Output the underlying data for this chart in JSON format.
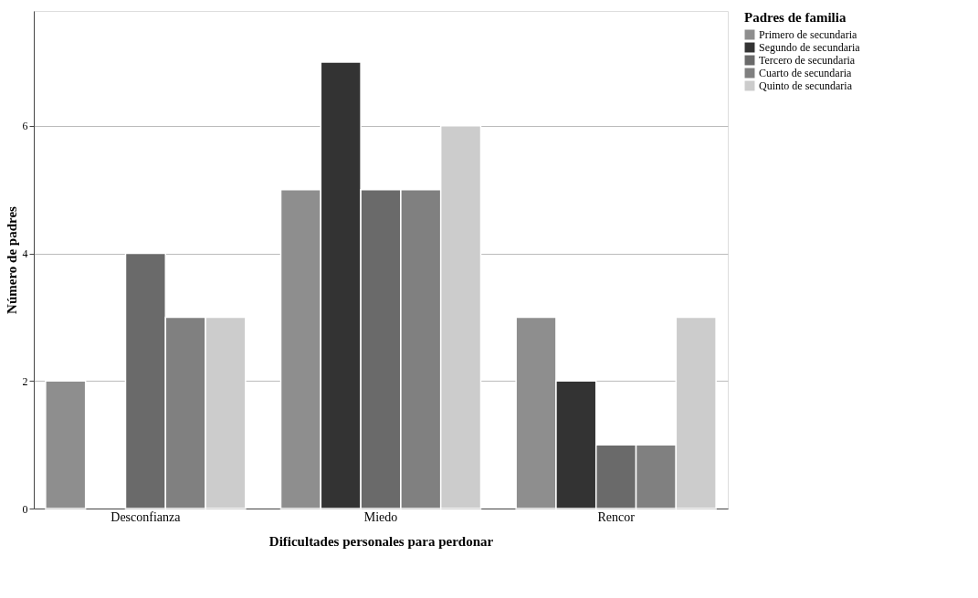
{
  "chart_data": {
    "type": "bar",
    "xlabel": "Dificultades personales para perdonar",
    "ylabel": "Número de padres",
    "legend_title": "Padres de familia",
    "categories": [
      "Desconfianza",
      "Miedo",
      "Rencor"
    ],
    "series": [
      {
        "name": "Primero de secundaria",
        "color": "#8e8e8e",
        "values": [
          2,
          5,
          3
        ]
      },
      {
        "name": "Segundo de secundaria",
        "color": "#333333",
        "values": [
          0,
          7,
          2
        ]
      },
      {
        "name": "Tercero de secundaria",
        "color": "#6a6a6a",
        "values": [
          4,
          5,
          1
        ]
      },
      {
        "name": "Cuarto de secundaria",
        "color": "#808080",
        "values": [
          3,
          5,
          1
        ]
      },
      {
        "name": "Quinto de secundaria",
        "color": "#cccccc",
        "values": [
          3,
          6,
          3
        ]
      }
    ],
    "ylim": [
      0,
      7.8
    ],
    "yticks": [
      0,
      2,
      4,
      6
    ],
    "grid": "y",
    "legend": "top right"
  }
}
